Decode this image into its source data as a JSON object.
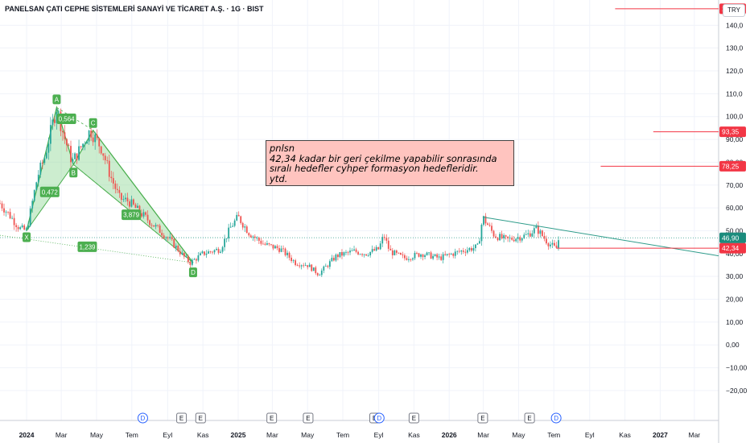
{
  "header": {
    "symbol_title": "PANELSAN ÇATI CEPHE SİSTEMLERİ SANAYİ VE TİCARET A.Ş. · 1G · BIST",
    "currency": "TRY"
  },
  "annotation": {
    "lines": [
      "pnlsn",
      "42,34 kadar bir geri çekilme yapabilir sonrasında",
      "sıralı hedefler cyhper formasyon hedefleridir.",
      "ytd."
    ]
  },
  "colors": {
    "up": "#26a69a",
    "down": "#ef5350",
    "pattern_fill": "#8fd694",
    "pattern_point": "#4caf50",
    "trendline": "#2e9c8a",
    "target_line": "#f23645",
    "last_price_label": "#1c8c7d"
  },
  "chart_data": {
    "type": "candlestick",
    "y_axis": {
      "min": -20,
      "max": 150,
      "ticks": [
        -20,
        -10,
        0,
        10,
        20,
        30,
        40,
        50,
        60,
        70,
        80,
        90,
        100,
        110,
        120,
        130,
        140
      ],
      "tick_labels": [
        "−20,00",
        "−10,00",
        "0,00",
        "10,00",
        "20,00",
        "30,00",
        "40,00",
        "50,00",
        "60,00",
        "70,00",
        "80,00",
        "90,00",
        "100,0",
        "110,0",
        "120,0",
        "130,0",
        "140,0"
      ]
    },
    "x_axis": {
      "start": "2023-11-16",
      "end": "2027-04-12",
      "ticks": [
        {
          "date": "2024-01-01",
          "label": "2024",
          "bold": true
        },
        {
          "date": "2024-03-01",
          "label": "Mar"
        },
        {
          "date": "2024-05-01",
          "label": "May"
        },
        {
          "date": "2024-07-01",
          "label": "Tem"
        },
        {
          "date": "2024-09-01",
          "label": "Eyl"
        },
        {
          "date": "2024-11-01",
          "label": "Kas"
        },
        {
          "date": "2025-01-01",
          "label": "2025",
          "bold": true
        },
        {
          "date": "2025-03-01",
          "label": "Mar"
        },
        {
          "date": "2025-05-01",
          "label": "May"
        },
        {
          "date": "2025-07-01",
          "label": "Tem"
        },
        {
          "date": "2025-09-01",
          "label": "Eyl"
        },
        {
          "date": "2025-11-01",
          "label": "Kas"
        },
        {
          "date": "2026-01-01",
          "label": "2026",
          "bold": true
        },
        {
          "date": "2026-03-01",
          "label": "Mar"
        },
        {
          "date": "2026-05-01",
          "label": "May"
        },
        {
          "date": "2026-07-01",
          "label": "Tem"
        },
        {
          "date": "2026-09-01",
          "label": "Eyl"
        },
        {
          "date": "2026-11-01",
          "label": "Kas"
        },
        {
          "date": "2027-01-01",
          "label": "2027",
          "bold": true
        },
        {
          "date": "2027-03-01",
          "label": "Mar"
        }
      ]
    },
    "price_path": [
      {
        "date": "2023-11-16",
        "value": 62
      },
      {
        "date": "2023-12-05",
        "value": 56
      },
      {
        "date": "2023-12-20",
        "value": 51
      },
      {
        "date": "2024-01-01",
        "value": 50
      },
      {
        "date": "2024-01-20",
        "value": 74
      },
      {
        "date": "2024-02-01",
        "value": 82
      },
      {
        "date": "2024-02-15",
        "value": 97
      },
      {
        "date": "2024-02-22",
        "value": 104
      },
      {
        "date": "2024-03-05",
        "value": 92
      },
      {
        "date": "2024-03-20",
        "value": 80
      },
      {
        "date": "2024-04-05",
        "value": 87
      },
      {
        "date": "2024-04-20",
        "value": 94
      },
      {
        "date": "2024-05-10",
        "value": 86
      },
      {
        "date": "2024-05-25",
        "value": 74
      },
      {
        "date": "2024-06-10",
        "value": 64
      },
      {
        "date": "2024-06-25",
        "value": 63
      },
      {
        "date": "2024-07-15",
        "value": 58
      },
      {
        "date": "2024-08-10",
        "value": 52
      },
      {
        "date": "2024-09-05",
        "value": 46
      },
      {
        "date": "2024-10-01",
        "value": 38
      },
      {
        "date": "2024-10-10",
        "value": 36
      },
      {
        "date": "2024-11-01",
        "value": 40
      },
      {
        "date": "2024-12-01",
        "value": 42
      },
      {
        "date": "2024-12-20",
        "value": 52
      },
      {
        "date": "2025-01-01",
        "value": 56
      },
      {
        "date": "2025-01-20",
        "value": 49
      },
      {
        "date": "2025-02-15",
        "value": 44
      },
      {
        "date": "2025-03-15",
        "value": 42
      },
      {
        "date": "2025-04-10",
        "value": 36
      },
      {
        "date": "2025-05-01",
        "value": 35
      },
      {
        "date": "2025-05-20",
        "value": 31
      },
      {
        "date": "2025-06-20",
        "value": 39
      },
      {
        "date": "2025-07-20",
        "value": 41
      },
      {
        "date": "2025-08-10",
        "value": 40
      },
      {
        "date": "2025-09-01",
        "value": 42
      },
      {
        "date": "2025-09-10",
        "value": 48
      },
      {
        "date": "2025-09-20",
        "value": 41
      },
      {
        "date": "2025-10-15",
        "value": 38
      },
      {
        "date": "2025-11-15",
        "value": 40
      },
      {
        "date": "2025-12-15",
        "value": 38
      },
      {
        "date": "2026-01-20",
        "value": 41
      },
      {
        "date": "2026-02-20",
        "value": 43
      },
      {
        "date": "2026-02-28",
        "value": 56
      },
      {
        "date": "2026-03-20",
        "value": 48
      },
      {
        "date": "2026-04-10",
        "value": 46
      },
      {
        "date": "2026-05-15",
        "value": 48
      },
      {
        "date": "2026-06-01",
        "value": 51
      },
      {
        "date": "2026-06-20",
        "value": 45
      },
      {
        "date": "2026-07-05",
        "value": 42
      },
      {
        "date": "2026-07-10",
        "value": 47
      }
    ],
    "harmonic_pattern": {
      "name": "cypher",
      "points": [
        {
          "label": "X",
          "date": "2024-01-01",
          "value": 50
        },
        {
          "label": "A",
          "date": "2024-02-22",
          "value": 104
        },
        {
          "label": "B",
          "date": "2024-03-22",
          "value": 79
        },
        {
          "label": "C",
          "date": "2024-04-25",
          "value": 94
        },
        {
          "label": "D",
          "date": "2024-10-15",
          "value": 36
        }
      ],
      "ratios": [
        {
          "label": "0,564",
          "date": "2024-03-10",
          "value": 99
        },
        {
          "label": "0,472",
          "date": "2024-02-10",
          "value": 67
        },
        {
          "label": "3,879",
          "date": "2024-06-30",
          "value": 57
        },
        {
          "label": "1,239",
          "date": "2024-04-15",
          "value": 43
        }
      ]
    },
    "trendline": {
      "start": {
        "date": "2026-02-28",
        "value": 56
      },
      "end": {
        "date": "2027-04-12",
        "value": 39
      }
    },
    "support_dotted_line": {
      "start": {
        "date": "2023-11-16",
        "value": 47
      },
      "end": {
        "date": "2027-04-12",
        "value": 46.9
      }
    },
    "xd_dotted_line": {
      "start": {
        "date": "2023-11-16",
        "value": 48
      },
      "end": {
        "date": "2024-10-15",
        "value": 36
      }
    },
    "target_lines": [
      {
        "value": 147.2,
        "label": "147,2",
        "from": "2026-10-15"
      },
      {
        "value": 93.35,
        "label": "93,35",
        "from": "2026-12-20"
      },
      {
        "value": 78.25,
        "label": "78,25",
        "from": "2026-09-20"
      },
      {
        "value": 42.34,
        "label": "42,34",
        "from": "2026-07-05"
      }
    ],
    "last_price": {
      "value": 46.9,
      "label": "46,90"
    },
    "events": [
      {
        "date": "2024-07-20",
        "type": "D"
      },
      {
        "date": "2024-09-25",
        "type": "E"
      },
      {
        "date": "2024-10-28",
        "type": "E"
      },
      {
        "date": "2025-02-28",
        "type": "E"
      },
      {
        "date": "2025-05-02",
        "type": "E"
      },
      {
        "date": "2025-08-25",
        "type": "E"
      },
      {
        "date": "2025-09-02",
        "type": "D"
      },
      {
        "date": "2025-11-01",
        "type": "E"
      },
      {
        "date": "2026-02-28",
        "type": "E"
      },
      {
        "date": "2026-05-20",
        "type": "E"
      },
      {
        "date": "2026-07-05",
        "type": "D"
      }
    ]
  }
}
